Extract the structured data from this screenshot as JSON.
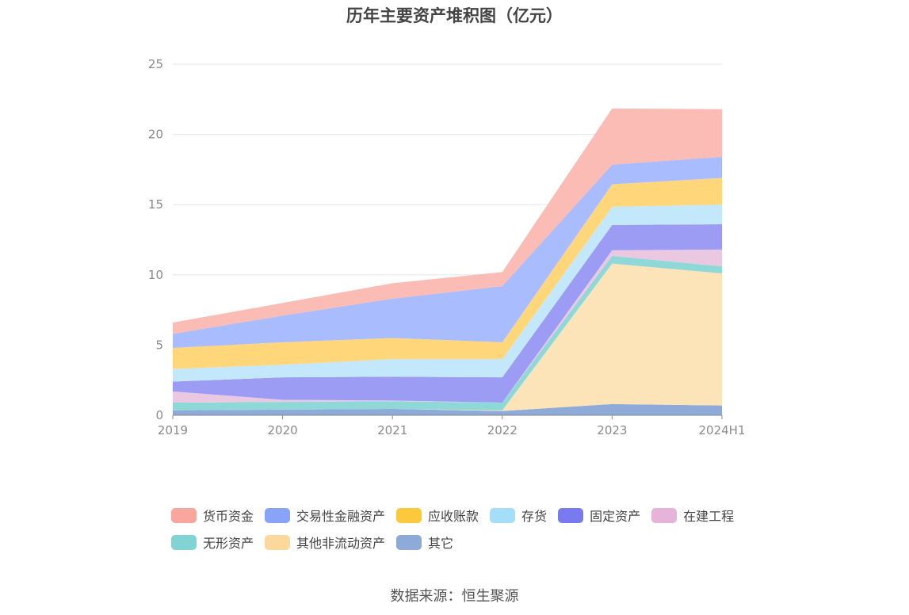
{
  "title": "历年主要资产堆积图（亿元）",
  "source": "数据来源：恒生聚源",
  "chart_data": {
    "type": "area",
    "stacked": true,
    "title": "历年主要资产堆积图（亿元）",
    "xlabel": "",
    "ylabel": "",
    "categories": [
      "2019",
      "2020",
      "2021",
      "2022",
      "2023",
      "2024H1"
    ],
    "ylim": [
      0,
      25
    ],
    "yticks": [
      0,
      5,
      10,
      15,
      20,
      25
    ],
    "grid": true,
    "legend_position": "bottom",
    "series": [
      {
        "name": "其它",
        "color": "#8eaad8",
        "values": [
          0.35,
          0.4,
          0.45,
          0.3,
          0.8,
          0.7
        ]
      },
      {
        "name": "其他非流动资产",
        "color": "#fde3b8",
        "values": [
          0.0,
          0.0,
          0.0,
          0.05,
          10.0,
          9.4
        ]
      },
      {
        "name": "无形资产",
        "color": "#8fd8d8",
        "values": [
          0.55,
          0.55,
          0.55,
          0.55,
          0.55,
          0.5
        ]
      },
      {
        "name": "在建工程",
        "color": "#eac8e2",
        "values": [
          0.8,
          0.15,
          0.05,
          0.0,
          0.4,
          1.2
        ]
      },
      {
        "name": "固定资产",
        "color": "#9c9cf4",
        "values": [
          0.7,
          1.6,
          1.7,
          1.8,
          1.8,
          1.8
        ]
      },
      {
        "name": "存货",
        "color": "#c4e8fb",
        "values": [
          0.9,
          0.9,
          1.25,
          1.3,
          1.3,
          1.4
        ]
      },
      {
        "name": "应收账款",
        "color": "#ffd67a",
        "values": [
          1.5,
          1.6,
          1.5,
          1.2,
          1.6,
          1.9
        ]
      },
      {
        "name": "交易性金融资产",
        "color": "#a9bcfd",
        "values": [
          1.0,
          1.9,
          2.8,
          4.0,
          1.4,
          1.5
        ]
      },
      {
        "name": "货币资金",
        "color": "#fbbcb5",
        "values": [
          0.8,
          0.9,
          1.1,
          1.0,
          4.0,
          3.4
        ]
      }
    ]
  },
  "legend": [
    {
      "label": "货币资金",
      "color": "#f9a69c"
    },
    {
      "label": "交易性金融资产",
      "color": "#88a4f8"
    },
    {
      "label": "应收账款",
      "color": "#fdc93c"
    },
    {
      "label": "存货",
      "color": "#a4def8"
    },
    {
      "label": "固定资产",
      "color": "#7a7af0"
    },
    {
      "label": "在建工程",
      "color": "#e6b4d8"
    },
    {
      "label": "无形资产",
      "color": "#82d4d4"
    },
    {
      "label": "其他非流动资产",
      "color": "#fdd89c"
    },
    {
      "label": "其它",
      "color": "#8eaad8"
    }
  ]
}
